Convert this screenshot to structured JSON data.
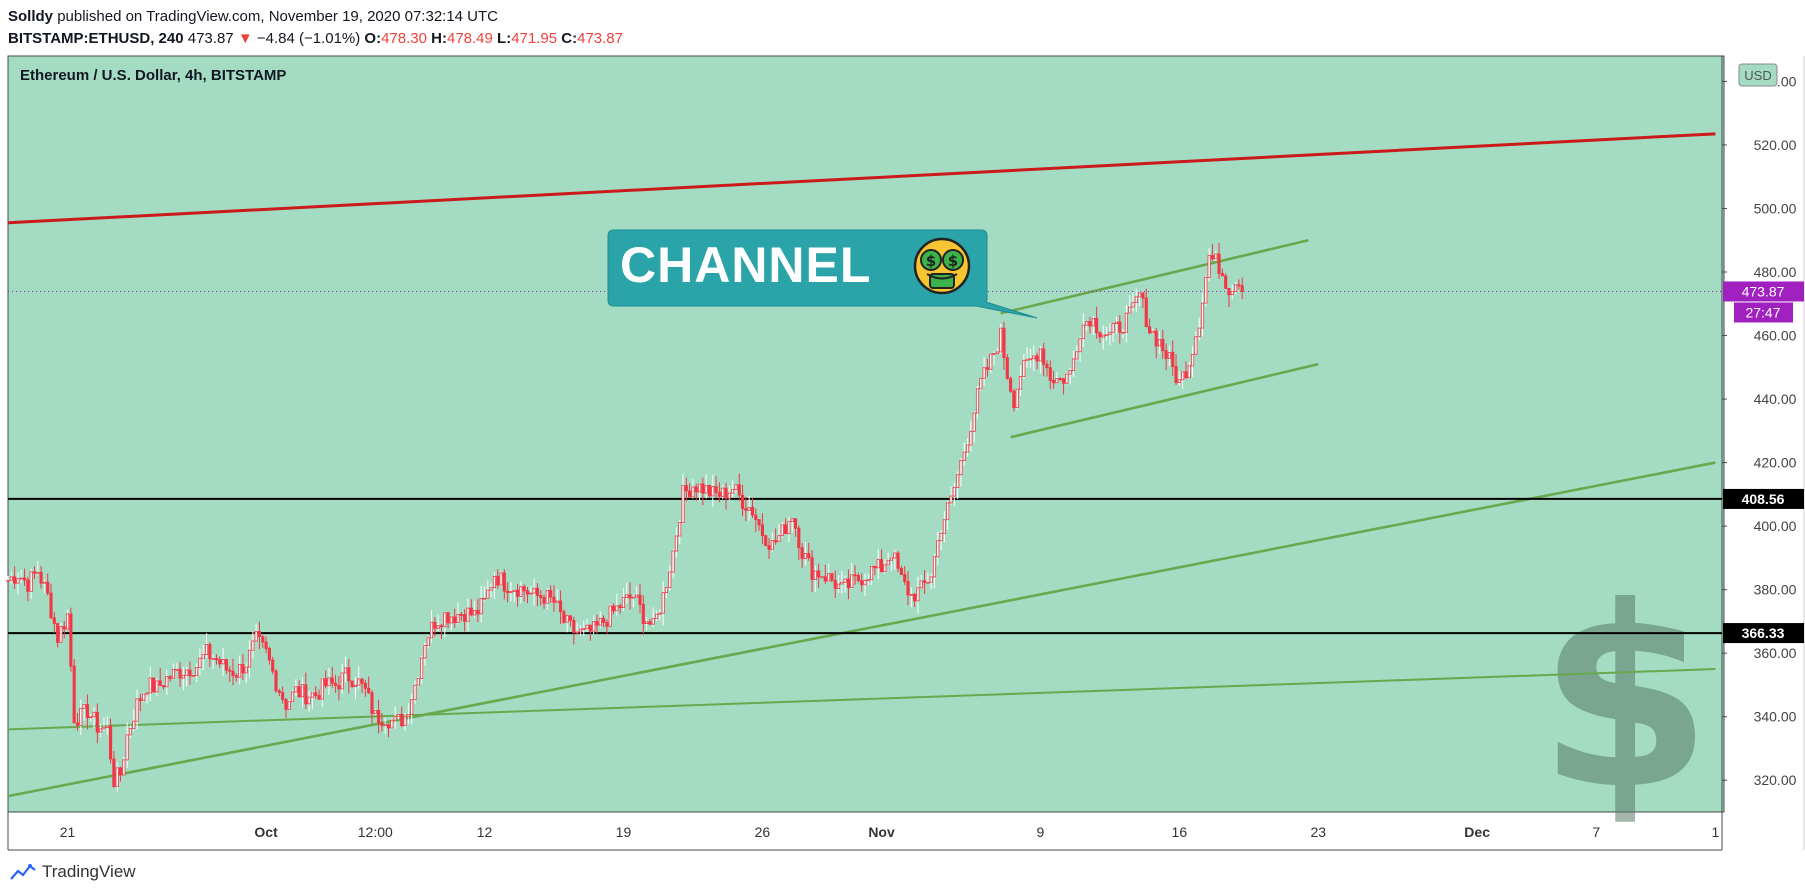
{
  "header": {
    "author": "Solldy",
    "published": "published on TradingView.com, November 19, 2020 07:32:14 UTC",
    "symbol": "BITSTAMP:ETHUSD, 240",
    "last": "473.87",
    "change": "−4.84 (−1.01%)",
    "o_label": "O:",
    "o": "478.30",
    "h_label": "H:",
    "h": "478.49",
    "l_label": "L:",
    "l": "471.95",
    "c_label": "C:",
    "c": "473.87"
  },
  "footer": {
    "brand": "TradingView"
  },
  "annotation": {
    "text": "CHANNEL",
    "emoji": "money-mouth-face-icon"
  },
  "colors": {
    "background": "#a3dcc3",
    "candle_up": "#ffffff",
    "candle_down": "#f23645",
    "resistance": "#cc1a1a",
    "trend": "#6aa84f",
    "callout": "#2aa4a8",
    "price_tag": "#a020c0",
    "level_tag": "#000000"
  },
  "chart_data": {
    "type": "candlestick",
    "title": "Ethereum / U.S. Dollar, 4h, BITSTAMP",
    "currency": "USD",
    "ylim": [
      310,
      548
    ],
    "y_ticks": [
      "540.00",
      "520.00",
      "500.00",
      "480.00",
      "460.00",
      "440.00",
      "420.00",
      "400.00",
      "380.00",
      "360.00",
      "340.00",
      "320.00"
    ],
    "y_tick_values": [
      540,
      520,
      500,
      480,
      460,
      440,
      420,
      400,
      380,
      360,
      340,
      320
    ],
    "x_ticks": [
      "21",
      "Oct",
      "12:00",
      "12",
      "19",
      "26",
      "Nov",
      "9",
      "16",
      "23",
      "Dec",
      "7",
      "1"
    ],
    "x_tick_dates": [
      "2020-09-21",
      "2020-10-01",
      "2020-10-06 12:00",
      "2020-10-12",
      "2020-10-19",
      "2020-10-26",
      "2020-11-01",
      "2020-11-09",
      "2020-11-16",
      "2020-11-23",
      "2020-12-01",
      "2020-12-07",
      "2020-12-13"
    ],
    "last_price": "473.87",
    "countdown": "27:47",
    "levels": [
      {
        "label": "408.56",
        "value": 408.56
      },
      {
        "label": "366.33",
        "value": 366.33
      }
    ],
    "close_series": [
      [
        "2020-09-18 00:00",
        383
      ],
      [
        "2020-09-18 12:00",
        385
      ],
      [
        "2020-09-19 00:00",
        382
      ],
      [
        "2020-09-19 12:00",
        386
      ],
      [
        "2020-09-20 00:00",
        378
      ],
      [
        "2020-09-20 12:00",
        365
      ],
      [
        "2020-09-21 00:00",
        372
      ],
      [
        "2020-09-21 08:00",
        340
      ],
      [
        "2020-09-21 16:00",
        340
      ],
      [
        "2020-09-22 00:00",
        342
      ],
      [
        "2020-09-22 12:00",
        337
      ],
      [
        "2020-09-23 00:00",
        336
      ],
      [
        "2020-09-23 08:00",
        320
      ],
      [
        "2020-09-23 16:00",
        322
      ],
      [
        "2020-09-24 00:00",
        334
      ],
      [
        "2020-09-24 12:00",
        344
      ],
      [
        "2020-09-25 00:00",
        350
      ],
      [
        "2020-09-25 12:00",
        349
      ],
      [
        "2020-09-26 00:00",
        352
      ],
      [
        "2020-09-26 12:00",
        354
      ],
      [
        "2020-09-27 00:00",
        355
      ],
      [
        "2020-09-27 12:00",
        356
      ],
      [
        "2020-09-28 00:00",
        360
      ],
      [
        "2020-09-28 12:00",
        358
      ],
      [
        "2020-09-29 00:00",
        355
      ],
      [
        "2020-09-29 12:00",
        354
      ],
      [
        "2020-09-30 00:00",
        357
      ],
      [
        "2020-09-30 12:00",
        364
      ],
      [
        "2020-10-01 00:00",
        360
      ],
      [
        "2020-10-01 12:00",
        351
      ],
      [
        "2020-10-02 00:00",
        344
      ],
      [
        "2020-10-02 12:00",
        348
      ],
      [
        "2020-10-03 00:00",
        347
      ],
      [
        "2020-10-03 12:00",
        347
      ],
      [
        "2020-10-04 00:00",
        350
      ],
      [
        "2020-10-04 12:00",
        350
      ],
      [
        "2020-10-05 00:00",
        353
      ],
      [
        "2020-10-05 12:00",
        352
      ],
      [
        "2020-10-06 00:00",
        348
      ],
      [
        "2020-10-06 12:00",
        340
      ],
      [
        "2020-10-07 00:00",
        340
      ],
      [
        "2020-10-07 12:00",
        338
      ],
      [
        "2020-10-08 00:00",
        340
      ],
      [
        "2020-10-08 12:00",
        350
      ],
      [
        "2020-10-09 00:00",
        364
      ],
      [
        "2020-10-09 12:00",
        370
      ],
      [
        "2020-10-10 00:00",
        372
      ],
      [
        "2020-10-10 12:00",
        372
      ],
      [
        "2020-10-11 00:00",
        373
      ],
      [
        "2020-10-11 12:00",
        372
      ],
      [
        "2020-10-12 00:00",
        376
      ],
      [
        "2020-10-12 12:00",
        385
      ],
      [
        "2020-10-13 00:00",
        382
      ],
      [
        "2020-10-13 12:00",
        381
      ],
      [
        "2020-10-14 00:00",
        380
      ],
      [
        "2020-10-14 12:00",
        378
      ],
      [
        "2020-10-15 00:00",
        378
      ],
      [
        "2020-10-15 12:00",
        376
      ],
      [
        "2020-10-16 00:00",
        370
      ],
      [
        "2020-10-16 12:00",
        367
      ],
      [
        "2020-10-17 00:00",
        366
      ],
      [
        "2020-10-17 12:00",
        367
      ],
      [
        "2020-10-18 00:00",
        370
      ],
      [
        "2020-10-18 12:00",
        373
      ],
      [
        "2020-10-19 00:00",
        376
      ],
      [
        "2020-10-19 12:00",
        378
      ],
      [
        "2020-10-20 00:00",
        372
      ],
      [
        "2020-10-20 12:00",
        368
      ],
      [
        "2020-10-21 00:00",
        378
      ],
      [
        "2020-10-21 12:00",
        392
      ],
      [
        "2020-10-22 00:00",
        410
      ],
      [
        "2020-10-22 12:00",
        413
      ],
      [
        "2020-10-23 00:00",
        412
      ],
      [
        "2020-10-23 12:00",
        410
      ],
      [
        "2020-10-24 00:00",
        410
      ],
      [
        "2020-10-24 12:00",
        412
      ],
      [
        "2020-10-25 00:00",
        408
      ],
      [
        "2020-10-25 12:00",
        405
      ],
      [
        "2020-10-26 00:00",
        398
      ],
      [
        "2020-10-26 12:00",
        394
      ],
      [
        "2020-10-27 00:00",
        398
      ],
      [
        "2020-10-27 12:00",
        404
      ],
      [
        "2020-10-28 00:00",
        392
      ],
      [
        "2020-10-28 12:00",
        386
      ],
      [
        "2020-10-29 00:00",
        385
      ],
      [
        "2020-10-29 12:00",
        383
      ],
      [
        "2020-10-30 00:00",
        380
      ],
      [
        "2020-10-30 12:00",
        382
      ],
      [
        "2020-10-31 00:00",
        384
      ],
      [
        "2020-10-31 12:00",
        386
      ],
      [
        "2020-11-01 00:00",
        387
      ],
      [
        "2020-11-01 12:00",
        392
      ],
      [
        "2020-11-02 00:00",
        383
      ],
      [
        "2020-11-02 12:00",
        378
      ],
      [
        "2020-11-03 00:00",
        380
      ],
      [
        "2020-11-03 12:00",
        385
      ],
      [
        "2020-11-04 00:00",
        400
      ],
      [
        "2020-11-04 12:00",
        408
      ],
      [
        "2020-11-05 00:00",
        420
      ],
      [
        "2020-11-05 12:00",
        432
      ],
      [
        "2020-11-06 00:00",
        445
      ],
      [
        "2020-11-06 12:00",
        452
      ],
      [
        "2020-11-07 00:00",
        460
      ],
      [
        "2020-11-07 08:00",
        448
      ],
      [
        "2020-11-07 16:00",
        440
      ],
      [
        "2020-11-08 00:00",
        448
      ],
      [
        "2020-11-08 12:00",
        452
      ],
      [
        "2020-11-09 00:00",
        456
      ],
      [
        "2020-11-09 12:00",
        447
      ],
      [
        "2020-11-10 00:00",
        446
      ],
      [
        "2020-11-10 12:00",
        448
      ],
      [
        "2020-11-11 00:00",
        462
      ],
      [
        "2020-11-11 12:00",
        466
      ],
      [
        "2020-11-12 00:00",
        462
      ],
      [
        "2020-11-12 12:00",
        460
      ],
      [
        "2020-11-13 00:00",
        463
      ],
      [
        "2020-11-13 12:00",
        466
      ],
      [
        "2020-11-14 00:00",
        473
      ],
      [
        "2020-11-14 12:00",
        462
      ],
      [
        "2020-11-15 00:00",
        458
      ],
      [
        "2020-11-15 12:00",
        452
      ],
      [
        "2020-11-16 00:00",
        445
      ],
      [
        "2020-11-16 12:00",
        452
      ],
      [
        "2020-11-17 00:00",
        465
      ],
      [
        "2020-11-17 12:00",
        485
      ],
      [
        "2020-11-18 00:00",
        482
      ],
      [
        "2020-11-18 12:00",
        475
      ],
      [
        "2020-11-19 00:00",
        478
      ],
      [
        "2020-11-19 04:00",
        473.87
      ]
    ],
    "trendlines": [
      {
        "name": "resistance",
        "color": "#cc1a1a",
        "points": [
          [
            "2020-09-18 00:00",
            495.5
          ],
          [
            "2020-12-13 00:00",
            523.5
          ]
        ]
      },
      {
        "name": "channel-upper",
        "color": "#6aa84f",
        "points": [
          [
            "2020-11-07 00:00",
            467
          ],
          [
            "2020-11-22 12:00",
            490
          ]
        ]
      },
      {
        "name": "channel-lower",
        "color": "#6aa84f",
        "points": [
          [
            "2020-11-07 12:00",
            428
          ],
          [
            "2020-11-23 00:00",
            451
          ]
        ]
      },
      {
        "name": "long-trend",
        "color": "#6aa84f",
        "points": [
          [
            "2020-09-18 00:00",
            315
          ],
          [
            "2020-12-13 00:00",
            420
          ]
        ]
      },
      {
        "name": "flat-trend",
        "color": "#6aa84f",
        "points": [
          [
            "2020-09-18 00:00",
            336
          ],
          [
            "2020-12-13 00:00",
            355
          ]
        ]
      }
    ]
  }
}
